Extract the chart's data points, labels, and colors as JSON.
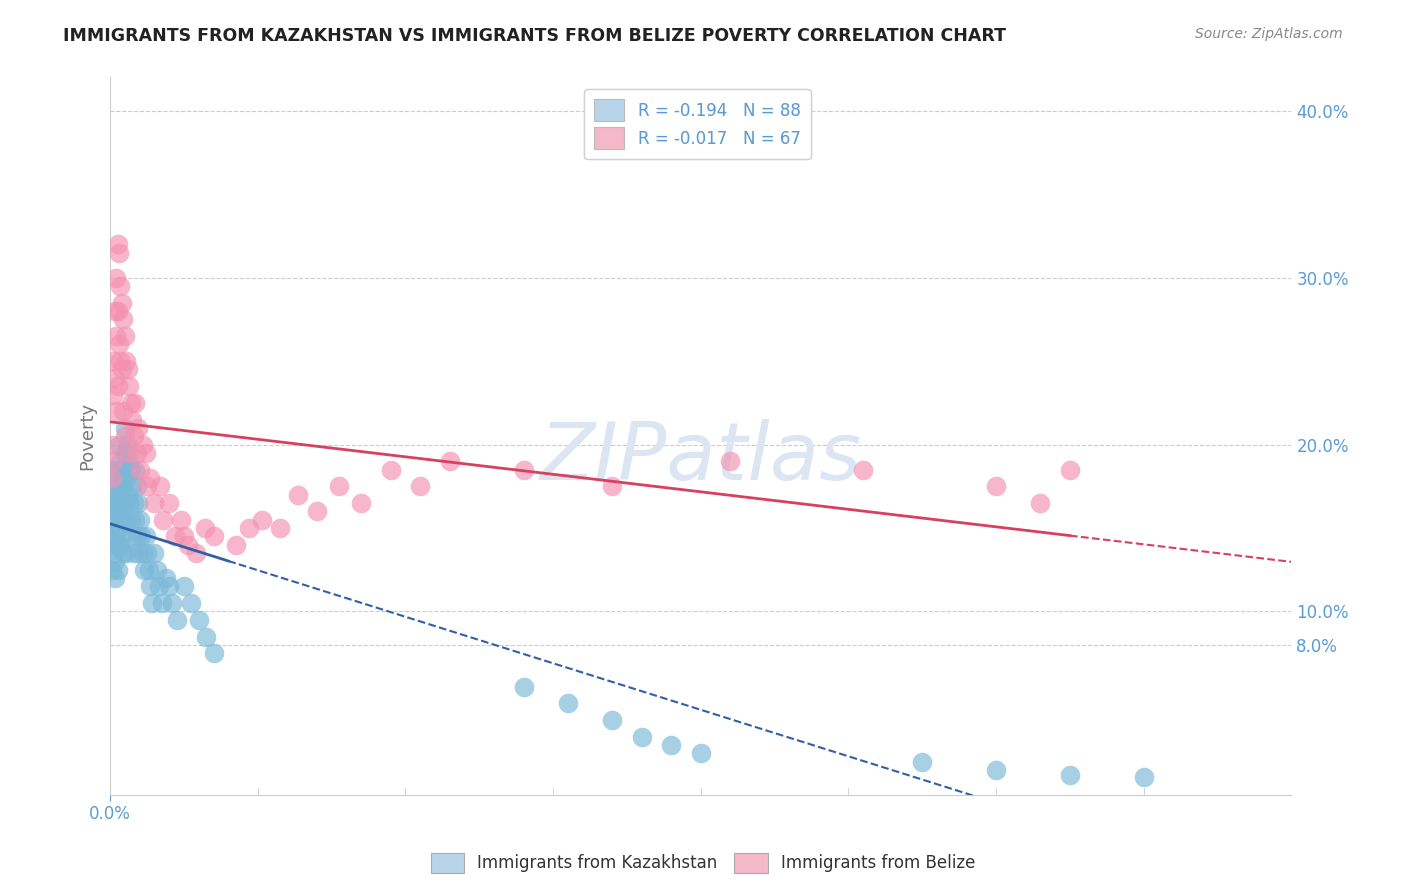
{
  "title": "IMMIGRANTS FROM KAZAKHSTAN VS IMMIGRANTS FROM BELIZE POVERTY CORRELATION CHART",
  "source_text": "Source: ZipAtlas.com",
  "ylabel": "Poverty",
  "watermark": "ZIPatlas",
  "legend_entries": [
    {
      "label": "R = -0.194   N = 88",
      "color": "#b8d4ea"
    },
    {
      "label": "R = -0.017   N = 67",
      "color": "#f4b8c8"
    }
  ],
  "kazakh_color": "#7ab8d8",
  "belize_color": "#f490b0",
  "kazakh_line_color": "#3060a8",
  "belize_line_color": "#d84060",
  "xlim": [
    0.0,
    0.08
  ],
  "ylim": [
    -0.01,
    0.42
  ],
  "right_yticks": [
    0.4,
    0.3,
    0.2,
    0.1,
    0.08
  ],
  "right_yticklabels": [
    "40.0%",
    "30.0%",
    "20.0%",
    "10.0%",
    "8.0%"
  ],
  "background_color": "#ffffff",
  "grid_color": "#cccccc",
  "title_color": "#222222",
  "axis_label_color": "#777777",
  "watermark_color": "#dce6f2",
  "right_tick_color": "#5b9bd5",
  "xtick_color": "#5b9bd5",
  "kazakh_x": [
    0.0,
    0.0001,
    0.0001,
    0.0002,
    0.0002,
    0.0002,
    0.0003,
    0.0003,
    0.0003,
    0.0003,
    0.0003,
    0.0004,
    0.0004,
    0.0004,
    0.0004,
    0.0005,
    0.0005,
    0.0005,
    0.0005,
    0.0005,
    0.0006,
    0.0006,
    0.0006,
    0.0006,
    0.0007,
    0.0007,
    0.0007,
    0.0007,
    0.0008,
    0.0008,
    0.0008,
    0.0009,
    0.0009,
    0.0009,
    0.001,
    0.001,
    0.001,
    0.0011,
    0.0011,
    0.0011,
    0.0012,
    0.0012,
    0.0013,
    0.0013,
    0.0014,
    0.0014,
    0.0015,
    0.0015,
    0.0016,
    0.0016,
    0.0017,
    0.0017,
    0.0018,
    0.0018,
    0.0019,
    0.0019,
    0.002,
    0.0021,
    0.0022,
    0.0023,
    0.0024,
    0.0025,
    0.0026,
    0.0027,
    0.0028,
    0.003,
    0.0032,
    0.0033,
    0.0035,
    0.0038,
    0.004,
    0.0042,
    0.0045,
    0.005,
    0.0055,
    0.006,
    0.0065,
    0.007,
    0.028,
    0.031,
    0.034,
    0.036,
    0.038,
    0.04,
    0.055,
    0.06,
    0.065,
    0.07
  ],
  "kazakh_y": [
    0.165,
    0.145,
    0.125,
    0.17,
    0.155,
    0.135,
    0.16,
    0.175,
    0.14,
    0.13,
    0.12,
    0.185,
    0.165,
    0.15,
    0.14,
    0.175,
    0.16,
    0.15,
    0.14,
    0.125,
    0.2,
    0.185,
    0.165,
    0.15,
    0.19,
    0.17,
    0.155,
    0.14,
    0.18,
    0.165,
    0.145,
    0.175,
    0.155,
    0.135,
    0.21,
    0.195,
    0.165,
    0.18,
    0.155,
    0.135,
    0.2,
    0.17,
    0.19,
    0.165,
    0.185,
    0.155,
    0.175,
    0.145,
    0.165,
    0.135,
    0.185,
    0.155,
    0.175,
    0.145,
    0.165,
    0.135,
    0.155,
    0.145,
    0.135,
    0.125,
    0.145,
    0.135,
    0.125,
    0.115,
    0.105,
    0.135,
    0.125,
    0.115,
    0.105,
    0.12,
    0.115,
    0.105,
    0.095,
    0.115,
    0.105,
    0.095,
    0.085,
    0.075,
    0.055,
    0.045,
    0.035,
    0.025,
    0.02,
    0.015,
    0.01,
    0.005,
    0.002,
    0.001
  ],
  "belize_x": [
    0.0001,
    0.0001,
    0.0002,
    0.0002,
    0.0002,
    0.0003,
    0.0003,
    0.0004,
    0.0004,
    0.0004,
    0.0005,
    0.0005,
    0.0005,
    0.0006,
    0.0006,
    0.0007,
    0.0007,
    0.0008,
    0.0008,
    0.0009,
    0.0009,
    0.001,
    0.001,
    0.0011,
    0.0012,
    0.0012,
    0.0013,
    0.0014,
    0.0015,
    0.0016,
    0.0017,
    0.0018,
    0.0019,
    0.002,
    0.0022,
    0.0024,
    0.0025,
    0.0027,
    0.003,
    0.0034,
    0.0036,
    0.004,
    0.0044,
    0.0048,
    0.005,
    0.0053,
    0.0058,
    0.0064,
    0.007,
    0.0085,
    0.0094,
    0.0103,
    0.0115,
    0.0127,
    0.014,
    0.0155,
    0.017,
    0.019,
    0.021,
    0.023,
    0.028,
    0.034,
    0.042,
    0.051,
    0.06,
    0.063,
    0.065
  ],
  "belize_y": [
    0.2,
    0.18,
    0.25,
    0.23,
    0.19,
    0.28,
    0.24,
    0.3,
    0.265,
    0.22,
    0.32,
    0.28,
    0.235,
    0.315,
    0.26,
    0.295,
    0.25,
    0.285,
    0.245,
    0.275,
    0.22,
    0.265,
    0.205,
    0.25,
    0.245,
    0.195,
    0.235,
    0.225,
    0.215,
    0.205,
    0.225,
    0.195,
    0.21,
    0.185,
    0.2,
    0.195,
    0.175,
    0.18,
    0.165,
    0.175,
    0.155,
    0.165,
    0.145,
    0.155,
    0.145,
    0.14,
    0.135,
    0.15,
    0.145,
    0.14,
    0.15,
    0.155,
    0.15,
    0.17,
    0.16,
    0.175,
    0.165,
    0.185,
    0.175,
    0.19,
    0.185,
    0.175,
    0.19,
    0.185,
    0.175,
    0.165,
    0.185
  ]
}
